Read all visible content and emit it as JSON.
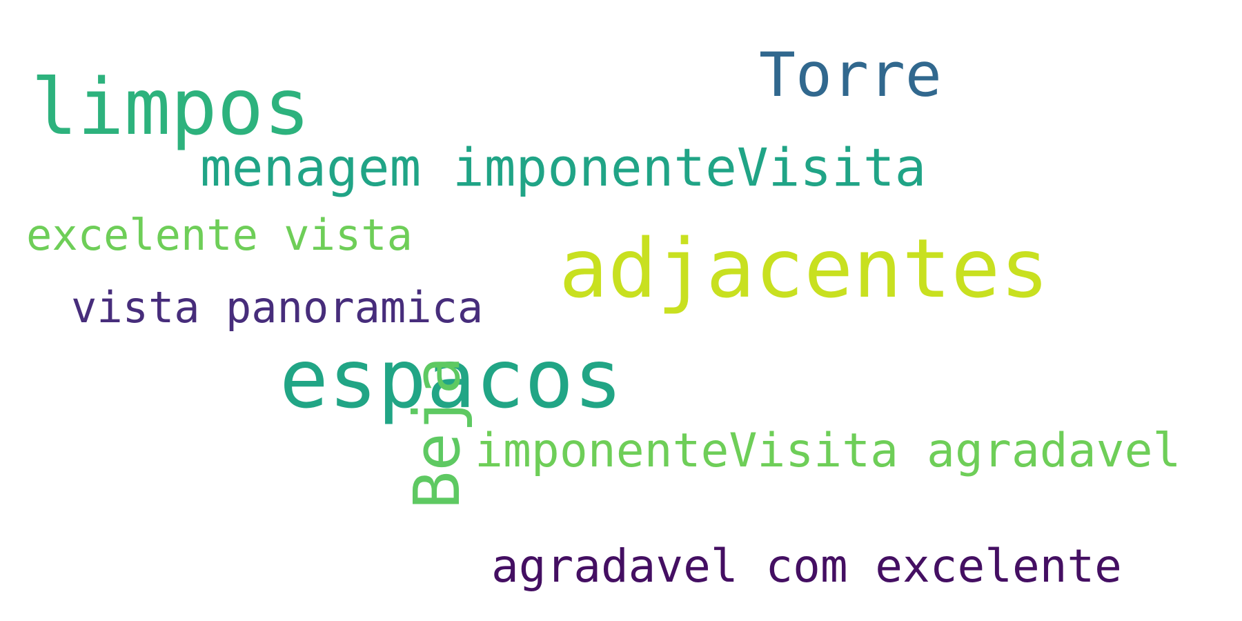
{
  "words": [
    {
      "text": "limpos",
      "color": "#2db27d"
    },
    {
      "text": "Torre",
      "color": "#31688e"
    },
    {
      "text": "menagem imponenteVisita",
      "color": "#20a486"
    },
    {
      "text": "excelente vista",
      "color": "#6ece58"
    },
    {
      "text": "adjacentes",
      "color": "#c8e020"
    },
    {
      "text": "vista panoramica",
      "color": "#472d7b"
    },
    {
      "text": "espacos",
      "color": "#21a585"
    },
    {
      "text": "Beja",
      "color": "#5ec962"
    },
    {
      "text": "imponenteVisita agradavel",
      "color": "#6ece58"
    },
    {
      "text": "agradavel com excelente",
      "color": "#440f62"
    }
  ]
}
